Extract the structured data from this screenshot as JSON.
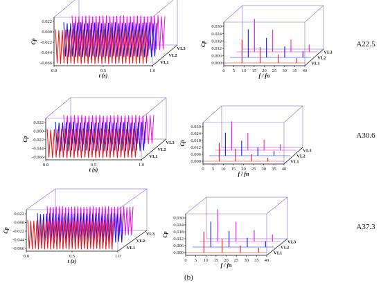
{
  "caption": "(b)",
  "colors": {
    "VL1": "#ee1111",
    "VL2": "#1010ee",
    "VL3": "#ee10ee",
    "frame": "#8a64c8"
  },
  "rows": [
    {
      "label": "A22.5"
    },
    {
      "label": "A30.6"
    },
    {
      "label": "A37.3"
    }
  ],
  "chart_data": [
    {
      "type": "line",
      "panel": "A22.5-time",
      "xlabel": "t (s)",
      "ylabel": "Cp",
      "xlim": [
        0,
        1.0
      ],
      "xticks": [
        "0.0",
        "0.5",
        "1.0"
      ],
      "yticks": [
        "-0.066",
        "-0.044",
        "-0.022",
        "0.000",
        "0.022"
      ],
      "series": [
        {
          "name": "VL1",
          "cycles": 27,
          "range": [
            -0.066,
            0.026
          ]
        },
        {
          "name": "VL2",
          "cycles": 27,
          "range": [
            -0.066,
            0.026
          ]
        },
        {
          "name": "VL3",
          "cycles": 27,
          "range": [
            -0.066,
            0.026
          ]
        }
      ]
    },
    {
      "type": "bar",
      "panel": "A22.5-spectrum",
      "xlabel": "f / fn",
      "ylabel": "Cp",
      "xlim": [
        0,
        40
      ],
      "xticks": [
        "0",
        "5",
        "10",
        "15",
        "20",
        "25",
        "30",
        "35",
        "40"
      ],
      "yticks": [
        "0.000",
        "0.006",
        "0.012",
        "0.018",
        "0.024",
        "0.030"
      ],
      "series": [
        {
          "name": "VL1",
          "x": [
            9,
            18,
            27,
            36
          ],
          "values": [
            0.019,
            0.013,
            0.007,
            0.004
          ]
        },
        {
          "name": "VL2",
          "x": [
            9,
            18,
            27,
            36
          ],
          "values": [
            0.023,
            0.016,
            0.009,
            0.005
          ]
        },
        {
          "name": "VL3",
          "x": [
            9,
            18,
            27,
            36
          ],
          "values": [
            0.027,
            0.018,
            0.01,
            0.006
          ]
        }
      ]
    },
    {
      "type": "line",
      "panel": "A30.6-time",
      "xlabel": "t (s)",
      "ylabel": "Cp",
      "xlim": [
        0,
        1.0
      ],
      "xticks": [
        "0.0",
        "0.5",
        "1.0"
      ],
      "yticks": [
        "-0.066",
        "-0.044",
        "-0.022",
        "0.000",
        "0.022"
      ],
      "series": [
        {
          "name": "VL1",
          "cycles": 25,
          "range": [
            -0.066,
            0.024
          ]
        },
        {
          "name": "VL2",
          "cycles": 25,
          "range": [
            -0.066,
            0.024
          ]
        },
        {
          "name": "VL3",
          "cycles": 25,
          "range": [
            -0.066,
            0.024
          ]
        }
      ]
    },
    {
      "type": "bar",
      "panel": "A30.6-spectrum",
      "xlabel": "f / fn",
      "ylabel": "Cp",
      "xlim": [
        0,
        40
      ],
      "xticks": [
        "0",
        "5",
        "10",
        "15",
        "20",
        "25",
        "30",
        "35",
        "40"
      ],
      "yticks": [
        "0.000",
        "0.006",
        "0.012",
        "0.018",
        "0.024",
        "0.030"
      ],
      "series": [
        {
          "name": "VL1",
          "x": [
            8,
            16,
            24,
            32
          ],
          "values": [
            0.016,
            0.011,
            0.006,
            0.003
          ]
        },
        {
          "name": "VL2",
          "x": [
            8,
            16,
            24,
            32
          ],
          "values": [
            0.02,
            0.013,
            0.007,
            0.004
          ]
        },
        {
          "name": "VL3",
          "x": [
            8,
            16,
            24,
            32
          ],
          "values": [
            0.025,
            0.015,
            0.009,
            0.005
          ]
        }
      ]
    },
    {
      "type": "line",
      "panel": "A37.3-time",
      "xlabel": "t (s)",
      "ylabel": "Cp",
      "xlim": [
        0,
        1.0
      ],
      "xticks": [
        "0.0",
        "0.5",
        "1.0"
      ],
      "yticks": [
        "-0.066",
        "-0.044",
        "-0.022",
        "0.000",
        "0.022"
      ],
      "series": [
        {
          "name": "VL1",
          "cycles": 28,
          "range": [
            -0.066,
            0.024
          ]
        },
        {
          "name": "VL2",
          "cycles": 28,
          "range": [
            -0.066,
            0.024
          ]
        },
        {
          "name": "VL3",
          "cycles": 28,
          "range": [
            -0.066,
            0.024
          ]
        }
      ]
    },
    {
      "type": "bar",
      "panel": "A37.3-spectrum",
      "xlabel": "f / fn",
      "ylabel": "Cp",
      "xlim": [
        0,
        40
      ],
      "xticks": [
        "0",
        "5",
        "10",
        "15",
        "20",
        "25",
        "30",
        "35",
        "40"
      ],
      "yticks": [
        "0.000",
        "0.006",
        "0.012",
        "0.018",
        "0.024",
        "0.030"
      ],
      "series": [
        {
          "name": "VL1",
          "x": [
            9,
            18,
            27,
            36
          ],
          "values": [
            0.018,
            0.012,
            0.006,
            0.004
          ]
        },
        {
          "name": "VL2",
          "x": [
            9,
            18,
            27,
            36
          ],
          "values": [
            0.022,
            0.014,
            0.008,
            0.005
          ]
        },
        {
          "name": "VL3",
          "x": [
            9,
            18,
            27,
            36
          ],
          "values": [
            0.028,
            0.017,
            0.01,
            0.006
          ]
        }
      ]
    }
  ]
}
